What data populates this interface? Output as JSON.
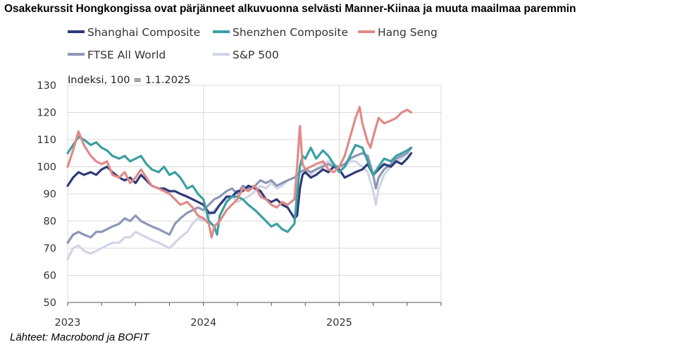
{
  "title": "Osakekurssit Hongkongissa ovat pärjänneet alkuvuonna selvästi Manner-Kiinaa ja muuta maailmaa paremmin",
  "source": "Lähteet: Macrobond ja BOFIT",
  "chart_data": {
    "type": "line",
    "ylabel_note": "Indeksi, 100 = 1.1.2025",
    "ylim": [
      50,
      130
    ],
    "yticks": [
      50,
      60,
      70,
      80,
      90,
      100,
      110,
      120,
      130
    ],
    "xlim": [
      2023.0,
      2025.75
    ],
    "xticks": [
      {
        "value": 2023.0,
        "label": "2023"
      },
      {
        "value": 2024.0,
        "label": "2024"
      },
      {
        "value": 2025.0,
        "label": "2025"
      }
    ],
    "grid": true,
    "legend_position": "top",
    "series": [
      {
        "name": "Shanghai Composite",
        "color": "#2e3a7a",
        "width": 3.2,
        "x": [
          2023.0,
          2023.04,
          2023.08,
          2023.12,
          2023.17,
          2023.21,
          2023.25,
          2023.29,
          2023.33,
          2023.38,
          2023.42,
          2023.46,
          2023.5,
          2023.54,
          2023.58,
          2023.62,
          2023.67,
          2023.71,
          2023.75,
          2023.79,
          2023.83,
          2023.88,
          2023.92,
          2023.96,
          2024.0,
          2024.04,
          2024.08,
          2024.12,
          2024.17,
          2024.21,
          2024.25,
          2024.29,
          2024.33,
          2024.38,
          2024.42,
          2024.46,
          2024.5,
          2024.54,
          2024.58,
          2024.62,
          2024.67,
          2024.69,
          2024.71,
          2024.73,
          2024.75,
          2024.79,
          2024.83,
          2024.88,
          2024.92,
          2024.96,
          2025.0,
          2025.04,
          2025.08,
          2025.12,
          2025.17,
          2025.21,
          2025.25,
          2025.29,
          2025.33,
          2025.38,
          2025.42,
          2025.46,
          2025.5,
          2025.53
        ],
        "y": [
          93,
          96,
          98,
          97,
          98,
          97,
          99,
          100,
          98,
          96,
          95,
          96,
          94,
          97,
          95,
          93,
          92,
          92,
          91,
          91,
          90,
          89,
          88,
          87,
          86,
          83,
          83,
          86,
          89,
          89,
          91,
          91,
          93,
          92,
          91,
          88,
          87,
          88,
          86,
          85,
          81,
          82,
          92,
          97,
          98,
          96,
          97,
          99,
          98,
          100,
          99,
          96,
          97,
          98,
          99,
          101,
          97,
          99,
          101,
          100,
          102,
          101,
          103,
          105
        ]
      },
      {
        "name": "Shenzhen Composite",
        "color": "#3a9fa2",
        "width": 3.2,
        "x": [
          2023.0,
          2023.04,
          2023.08,
          2023.12,
          2023.17,
          2023.21,
          2023.25,
          2023.29,
          2023.33,
          2023.38,
          2023.42,
          2023.46,
          2023.5,
          2023.54,
          2023.58,
          2023.62,
          2023.67,
          2023.71,
          2023.75,
          2023.79,
          2023.83,
          2023.88,
          2023.92,
          2023.96,
          2024.0,
          2024.04,
          2024.08,
          2024.1,
          2024.12,
          2024.17,
          2024.21,
          2024.25,
          2024.29,
          2024.33,
          2024.38,
          2024.42,
          2024.46,
          2024.5,
          2024.54,
          2024.58,
          2024.62,
          2024.67,
          2024.69,
          2024.71,
          2024.73,
          2024.75,
          2024.79,
          2024.83,
          2024.88,
          2024.92,
          2024.96,
          2025.0,
          2025.04,
          2025.08,
          2025.12,
          2025.17,
          2025.21,
          2025.25,
          2025.29,
          2025.33,
          2025.38,
          2025.42,
          2025.46,
          2025.5,
          2025.53
        ],
        "y": [
          105,
          108,
          111,
          110,
          108,
          109,
          107,
          106,
          104,
          103,
          104,
          102,
          103,
          104,
          101,
          99,
          98,
          100,
          97,
          98,
          96,
          92,
          93,
          90,
          88,
          80,
          78,
          75,
          82,
          87,
          89,
          89,
          88,
          86,
          84,
          82,
          80,
          78,
          79,
          77,
          76,
          79,
          90,
          100,
          104,
          103,
          107,
          103,
          106,
          104,
          101,
          98,
          100,
          104,
          108,
          107,
          102,
          97,
          100,
          103,
          102,
          104,
          105,
          106,
          107
        ]
      },
      {
        "name": "Hang Seng",
        "color": "#e08a88",
        "width": 3.2,
        "x": [
          2023.0,
          2023.04,
          2023.08,
          2023.12,
          2023.17,
          2023.21,
          2023.25,
          2023.29,
          2023.33,
          2023.38,
          2023.42,
          2023.46,
          2023.5,
          2023.54,
          2023.58,
          2023.62,
          2023.67,
          2023.71,
          2023.75,
          2023.79,
          2023.83,
          2023.88,
          2023.92,
          2023.96,
          2024.0,
          2024.04,
          2024.06,
          2024.08,
          2024.12,
          2024.17,
          2024.21,
          2024.25,
          2024.29,
          2024.33,
          2024.38,
          2024.42,
          2024.46,
          2024.5,
          2024.54,
          2024.58,
          2024.62,
          2024.67,
          2024.69,
          2024.71,
          2024.73,
          2024.75,
          2024.79,
          2024.83,
          2024.88,
          2024.92,
          2024.96,
          2025.0,
          2025.04,
          2025.08,
          2025.12,
          2025.15,
          2025.17,
          2025.21,
          2025.23,
          2025.25,
          2025.29,
          2025.33,
          2025.38,
          2025.42,
          2025.46,
          2025.5,
          2025.53
        ],
        "y": [
          100,
          106,
          113,
          108,
          104,
          102,
          101,
          102,
          97,
          96,
          98,
          94,
          96,
          99,
          96,
          93,
          92,
          91,
          90,
          88,
          86,
          87,
          85,
          82,
          81,
          79,
          74,
          78,
          80,
          84,
          86,
          88,
          92,
          91,
          93,
          89,
          88,
          86,
          85,
          87,
          86,
          88,
          100,
          115,
          101,
          99,
          100,
          101,
          102,
          99,
          98,
          100,
          104,
          111,
          118,
          122,
          116,
          109,
          107,
          111,
          118,
          116,
          117,
          118,
          120,
          121,
          120
        ]
      },
      {
        "name": "FTSE All World",
        "color": "#8d97b5",
        "width": 3.2,
        "x": [
          2023.0,
          2023.04,
          2023.08,
          2023.12,
          2023.17,
          2023.21,
          2023.25,
          2023.29,
          2023.33,
          2023.38,
          2023.42,
          2023.46,
          2023.5,
          2023.54,
          2023.58,
          2023.62,
          2023.67,
          2023.71,
          2023.75,
          2023.79,
          2023.83,
          2023.88,
          2023.92,
          2023.96,
          2024.0,
          2024.04,
          2024.08,
          2024.12,
          2024.17,
          2024.21,
          2024.25,
          2024.29,
          2024.33,
          2024.38,
          2024.42,
          2024.46,
          2024.5,
          2024.54,
          2024.58,
          2024.62,
          2024.67,
          2024.71,
          2024.75,
          2024.79,
          2024.83,
          2024.88,
          2024.92,
          2024.96,
          2025.0,
          2025.04,
          2025.08,
          2025.12,
          2025.17,
          2025.21,
          2025.25,
          2025.27,
          2025.29,
          2025.33,
          2025.38,
          2025.42,
          2025.46,
          2025.5,
          2025.53
        ],
        "y": [
          72,
          75,
          76,
          75,
          74,
          76,
          76,
          77,
          78,
          79,
          81,
          80,
          82,
          80,
          79,
          78,
          77,
          76,
          75,
          79,
          81,
          83,
          84,
          85,
          84,
          86,
          88,
          89,
          91,
          92,
          90,
          93,
          92,
          93,
          95,
          94,
          95,
          93,
          94,
          95,
          96,
          98,
          99,
          98,
          99,
          100,
          101,
          100,
          100,
          101,
          103,
          104,
          105,
          104,
          97,
          92,
          96,
          99,
          101,
          103,
          104,
          105,
          107
        ]
      },
      {
        "name": "S&P 500",
        "color": "#d0d5e6",
        "width": 3.2,
        "x": [
          2023.0,
          2023.04,
          2023.08,
          2023.12,
          2023.17,
          2023.21,
          2023.25,
          2023.29,
          2023.33,
          2023.38,
          2023.42,
          2023.46,
          2023.5,
          2023.54,
          2023.58,
          2023.62,
          2023.67,
          2023.71,
          2023.75,
          2023.79,
          2023.83,
          2023.88,
          2023.92,
          2023.96,
          2024.0,
          2024.04,
          2024.08,
          2024.12,
          2024.17,
          2024.21,
          2024.25,
          2024.29,
          2024.33,
          2024.38,
          2024.42,
          2024.46,
          2024.5,
          2024.54,
          2024.58,
          2024.62,
          2024.67,
          2024.71,
          2024.75,
          2024.79,
          2024.83,
          2024.88,
          2024.92,
          2024.96,
          2025.0,
          2025.04,
          2025.08,
          2025.12,
          2025.17,
          2025.21,
          2025.25,
          2025.27,
          2025.29,
          2025.33,
          2025.38,
          2025.42,
          2025.46,
          2025.5,
          2025.53
        ],
        "y": [
          66,
          70,
          71,
          69,
          68,
          69,
          70,
          71,
          72,
          72,
          74,
          74,
          76,
          75,
          74,
          73,
          72,
          71,
          70,
          72,
          74,
          76,
          79,
          81,
          80,
          82,
          84,
          86,
          88,
          89,
          87,
          88,
          89,
          91,
          93,
          92,
          94,
          92,
          93,
          95,
          96,
          98,
          98,
          97,
          99,
          101,
          102,
          101,
          100,
          100,
          102,
          102,
          100,
          98,
          91,
          86,
          92,
          97,
          100,
          102,
          103,
          105,
          107
        ]
      }
    ]
  }
}
